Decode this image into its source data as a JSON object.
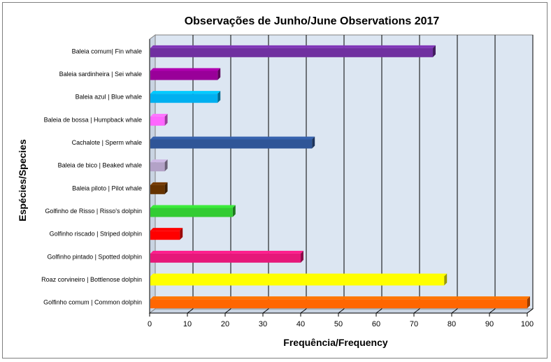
{
  "chart_data": {
    "type": "bar",
    "orientation": "horizontal",
    "title": "Observações de Junho/June  Observations 2017",
    "xlabel": "Frequência/Frequency",
    "ylabel": "Espécies/Species",
    "xlim": [
      0,
      100
    ],
    "xticks": [
      "0",
      "10",
      "20",
      "30",
      "40",
      "50",
      "60",
      "70",
      "80",
      "90",
      "100"
    ],
    "grid": "vertical",
    "legend": "none",
    "plot_background": "#dce6f2",
    "categories": [
      "Baleia comum| Fin whale",
      "Baleia sardinheira | Sei whale",
      "Baleia azul |  Blue whale",
      "Baleia de bossa | Humpback whale",
      "Cachalote |  Sperm whale",
      "Baleia de bico |  Beaked whale",
      "Baleia piloto |  Pilot whale",
      "Golfinho de Risso |  Risso's dolphin",
      "Golfinho riscado |  Striped dolphin",
      "Golfinho pintado | Spotted dolphin",
      "Roaz corvineiro  |  Bottlenose dolphin",
      "Golfinho comum |  Common dolphin"
    ],
    "values": [
      75,
      18,
      18,
      4,
      43,
      4,
      4,
      22,
      8,
      40,
      78,
      100
    ],
    "colors": [
      "#7030a0",
      "#990099",
      "#00b0f0",
      "#ff66ff",
      "#2f5597",
      "#b3a2c7",
      "#663300",
      "#33cc33",
      "#ff0000",
      "#e6187a",
      "#ffff00",
      "#ff6600"
    ]
  }
}
